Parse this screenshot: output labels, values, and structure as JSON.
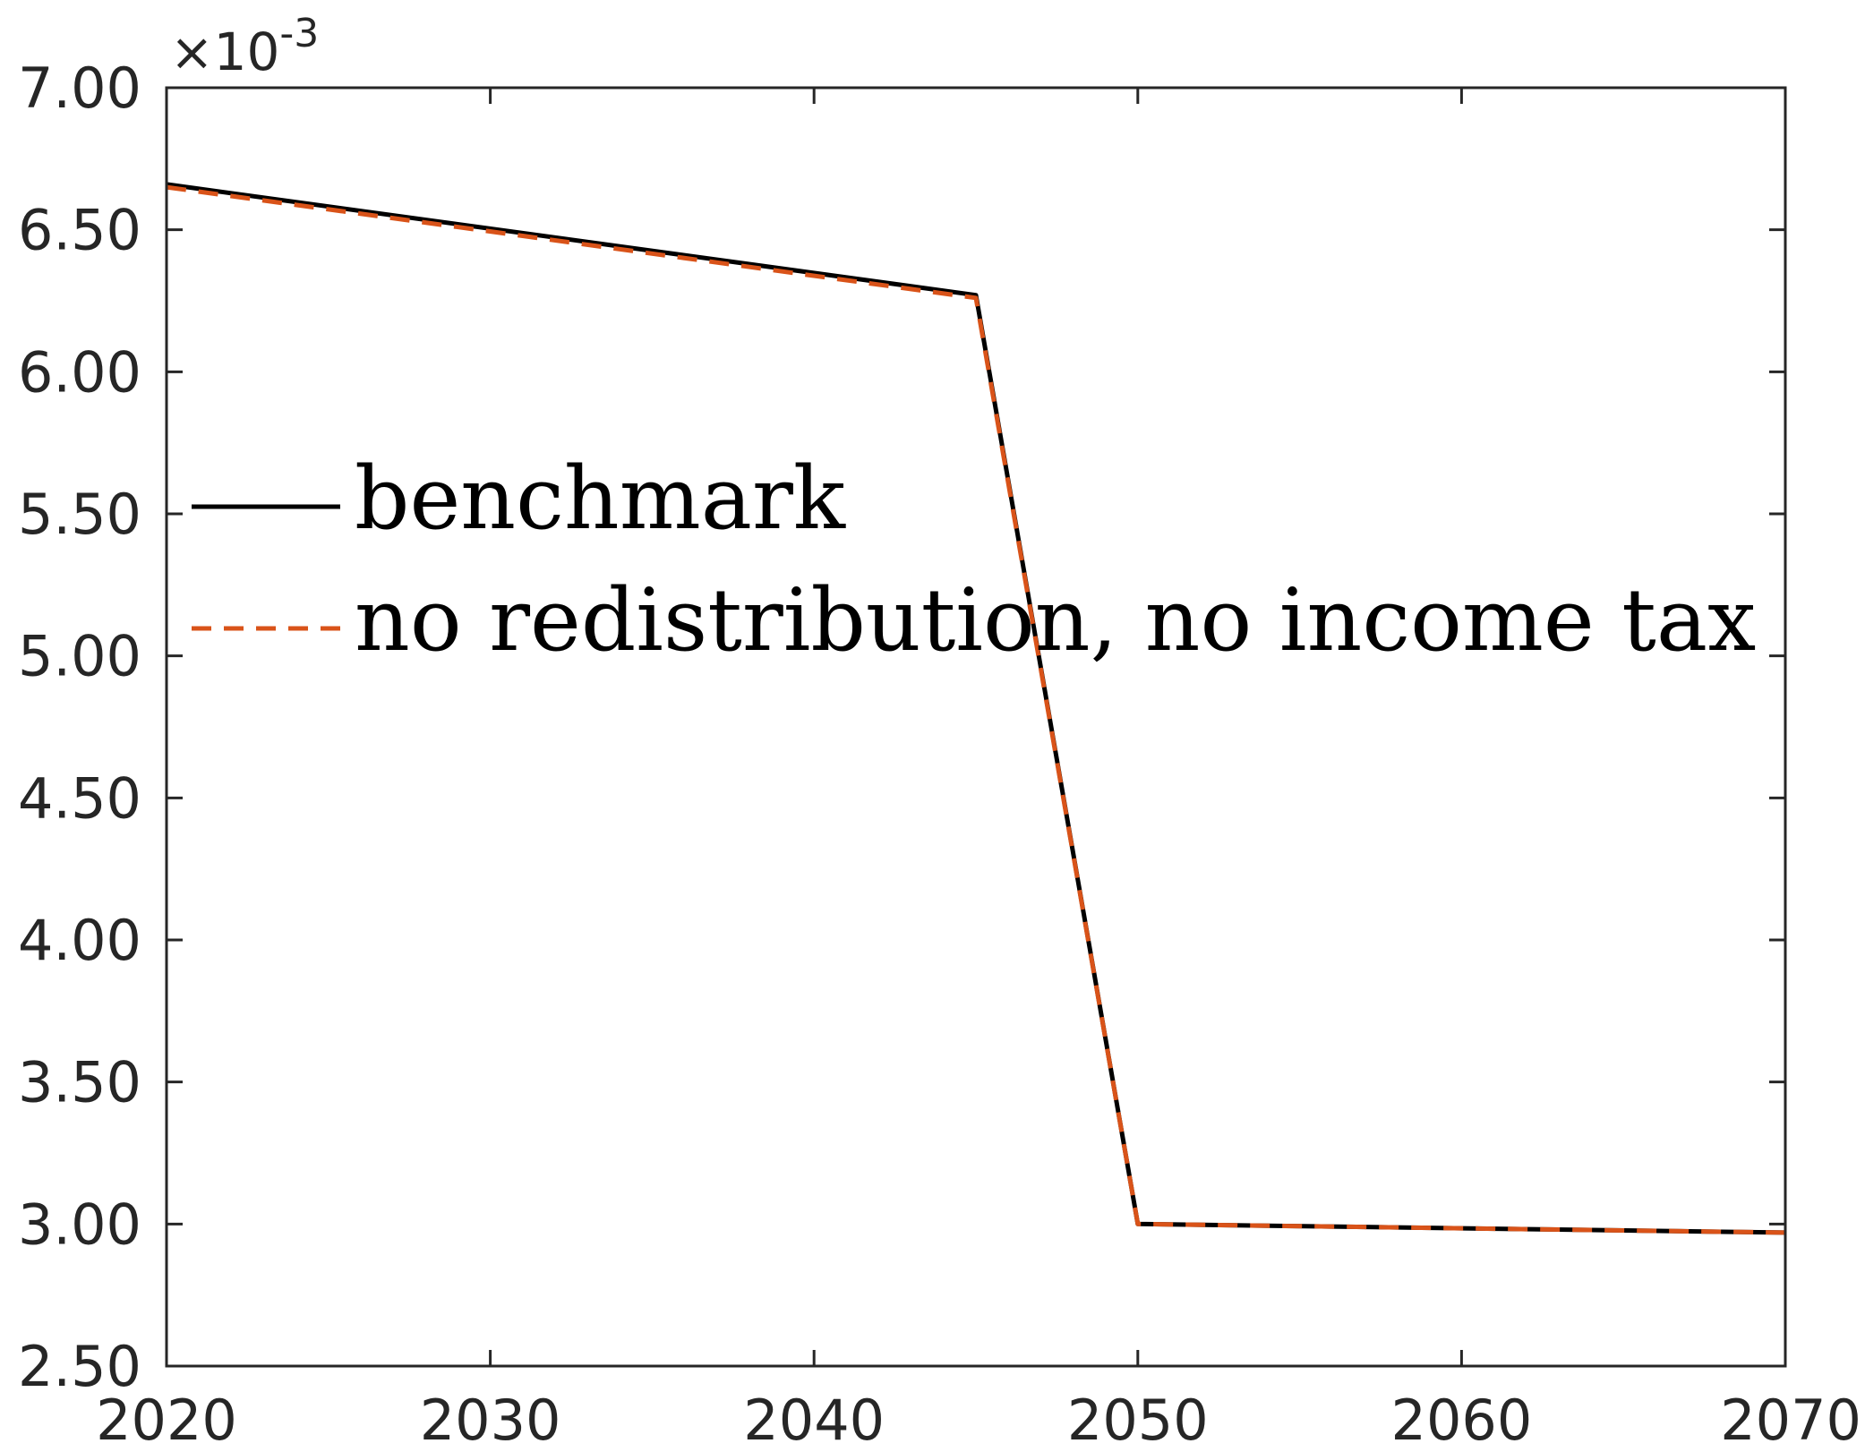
{
  "chart_data": {
    "type": "line",
    "title": "",
    "xlabel": "",
    "ylabel": "",
    "xlim": [
      2020,
      2070
    ],
    "ylim": [
      0.0025,
      0.007
    ],
    "x_ticks": [
      2020,
      2030,
      2040,
      2050,
      2060,
      2070
    ],
    "x_tick_labels": [
      "2020",
      "2030",
      "2040",
      "2050",
      "2060",
      "2070"
    ],
    "y_ticks": [
      0.0025,
      0.003,
      0.0035,
      0.004,
      0.0045,
      0.005,
      0.0055,
      0.006,
      0.0065,
      0.007
    ],
    "y_tick_labels": [
      "2.50",
      "3.00",
      "3.50",
      "4.00",
      "4.50",
      "5.00",
      "5.50",
      "6.00",
      "6.50",
      "7.00"
    ],
    "y_exponent_label": "×10",
    "y_exponent_power": "-3",
    "grid": false,
    "legend_position": "center-left",
    "series": [
      {
        "name": "benchmark",
        "color": "#000000",
        "style": "solid",
        "x": [
          2020,
          2045,
          2050,
          2070
        ],
        "y": [
          0.00666,
          0.00627,
          0.003,
          0.00297
        ]
      },
      {
        "name": "no redistribution, no income tax",
        "color": "#D95319",
        "style": "dashed",
        "x": [
          2020,
          2045,
          2050,
          2070
        ],
        "y": [
          0.00665,
          0.00626,
          0.003,
          0.00297
        ]
      }
    ]
  }
}
